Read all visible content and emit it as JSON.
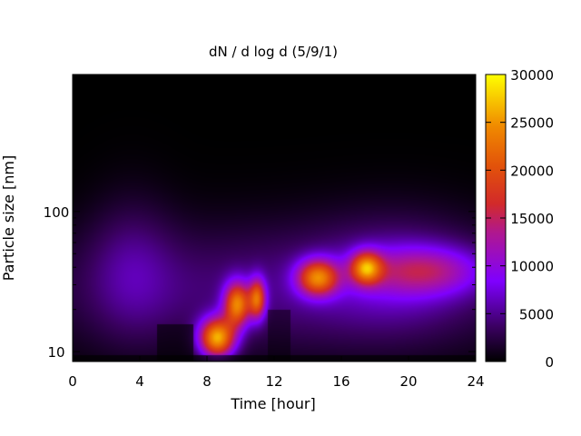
{
  "chart_data": {
    "type": "heatmap",
    "title": "dN / d log d (5/9/1)",
    "xlabel": "Time [hour]",
    "ylabel": "Particle size [nm]",
    "xlim": [
      0,
      24
    ],
    "ylim": [
      8.5,
      950
    ],
    "yscale": "log",
    "x_ticks": [
      0,
      4,
      8,
      12,
      16,
      20,
      24
    ],
    "y_ticks": [
      10,
      100
    ],
    "colorbar": {
      "range": [
        0,
        30000
      ],
      "ticks": [
        0,
        5000,
        10000,
        15000,
        20000,
        25000,
        30000
      ],
      "colormap": "gnuplot default (black-purple-red-orange-yellow)"
    },
    "features": [
      {
        "description": "growth event",
        "time_start": 7.5,
        "time_end": 11.5,
        "size_start_nm": 12,
        "size_end_nm": 28,
        "peak_value": 25000
      },
      {
        "description": "secondary mode",
        "time_start": 13.5,
        "time_end": 16.2,
        "size_nm": 35,
        "peak_value": 19000
      },
      {
        "description": "secondary mode",
        "time_start": 16.8,
        "time_end": 18.2,
        "size_nm": 40,
        "peak_value": 19000
      }
    ],
    "legend": "colorbar right",
    "grid": false
  }
}
